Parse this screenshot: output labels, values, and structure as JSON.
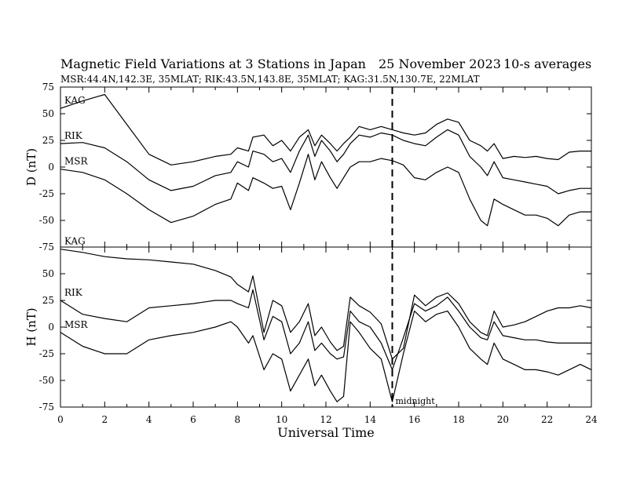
{
  "header": {
    "title": "Magnetic Field Variations at 3 Stations in Japan",
    "date": "25 November 2023",
    "averaging": "10-s averages",
    "stations": "MSR:44.4N,142.3E, 35MLAT;  RIK:43.5N,143.8E, 35MLAT;  KAG:31.5N,130.7E, 22MLAT"
  },
  "chart_data": [
    {
      "type": "line",
      "panel": "top",
      "ylabel": "D (nT)",
      "xlabel": "",
      "xlim": [
        0,
        24
      ],
      "ylim": [
        -75,
        75
      ],
      "yticks": [
        "75",
        "50",
        "25",
        "0",
        "-25",
        "-50",
        "-75"
      ],
      "grid": false,
      "series_labels": [
        "KAG",
        "RIK",
        "MSR"
      ],
      "x": [
        0,
        1,
        2,
        3,
        4,
        5,
        6,
        7,
        7.7,
        8,
        8.5,
        8.7,
        9.2,
        9.6,
        10,
        10.4,
        10.8,
        11.2,
        11.5,
        11.8,
        12.2,
        12.5,
        12.8,
        13.1,
        13.5,
        14,
        14.5,
        15,
        15.5,
        16,
        16.5,
        17,
        17.5,
        18,
        18.5,
        19,
        19.3,
        19.6,
        20,
        20.5,
        21,
        21.5,
        22,
        22.5,
        23,
        23.5,
        24
      ],
      "series": [
        {
          "name": "KAG",
          "values": [
            55,
            62,
            68,
            40,
            12,
            2,
            5,
            10,
            12,
            18,
            15,
            28,
            30,
            20,
            25,
            15,
            28,
            35,
            20,
            30,
            22,
            15,
            22,
            28,
            38,
            35,
            38,
            35,
            32,
            30,
            32,
            40,
            45,
            42,
            25,
            20,
            15,
            22,
            8,
            10,
            9,
            10,
            8,
            7,
            14,
            15,
            15
          ]
        },
        {
          "name": "RIK",
          "values": [
            22,
            23,
            18,
            5,
            -12,
            -22,
            -18,
            -8,
            -5,
            5,
            0,
            15,
            12,
            5,
            8,
            -5,
            15,
            30,
            10,
            25,
            15,
            5,
            12,
            22,
            30,
            28,
            32,
            30,
            25,
            22,
            20,
            28,
            35,
            30,
            10,
            0,
            -8,
            5,
            -10,
            -12,
            -14,
            -16,
            -18,
            -25,
            -22,
            -20,
            -20
          ]
        },
        {
          "name": "MSR",
          "values": [
            -2,
            -5,
            -12,
            -25,
            -40,
            -52,
            -46,
            -35,
            -30,
            -15,
            -22,
            -10,
            -15,
            -20,
            -18,
            -40,
            -15,
            12,
            -12,
            5,
            -10,
            -20,
            -10,
            0,
            5,
            5,
            8,
            6,
            2,
            -10,
            -12,
            -5,
            0,
            -5,
            -30,
            -50,
            -55,
            -30,
            -35,
            -40,
            -45,
            -45,
            -48,
            -55,
            -45,
            -42,
            -42
          ]
        }
      ]
    },
    {
      "type": "line",
      "panel": "bottom",
      "ylabel": "H (nT)",
      "xlabel": "Universal Time",
      "xlim": [
        0,
        24
      ],
      "ylim": [
        -75,
        75
      ],
      "xticks": [
        "0",
        "2",
        "4",
        "6",
        "8",
        "10",
        "12",
        "14",
        "16",
        "18",
        "20",
        "22",
        "24"
      ],
      "yticks": [
        "75",
        "50",
        "25",
        "0",
        "-25",
        "-50",
        "-75"
      ],
      "grid": false,
      "series_labels": [
        "KAG",
        "RIK",
        "MSR"
      ],
      "annotation": "midnight",
      "vline_x": 15,
      "x": [
        0,
        1,
        2,
        3,
        4,
        5,
        6,
        7,
        7.7,
        8,
        8.5,
        8.7,
        9.2,
        9.6,
        10,
        10.4,
        10.8,
        11.2,
        11.5,
        11.8,
        12.2,
        12.5,
        12.8,
        13.1,
        13.5,
        14,
        14.5,
        15,
        15.5,
        16,
        16.5,
        17,
        17.5,
        18,
        18.5,
        19,
        19.3,
        19.6,
        20,
        20.5,
        21,
        21.5,
        22,
        22.5,
        23,
        23.5,
        24
      ],
      "series": [
        {
          "name": "KAG",
          "values": [
            73,
            70,
            66,
            64,
            63,
            61,
            59,
            53,
            47,
            40,
            33,
            48,
            -5,
            25,
            20,
            -5,
            5,
            22,
            -8,
            0,
            -14,
            -22,
            -18,
            28,
            20,
            14,
            3,
            -30,
            -20,
            30,
            20,
            28,
            32,
            22,
            5,
            -5,
            -8,
            15,
            0,
            2,
            5,
            10,
            15,
            18,
            18,
            20,
            18
          ]
        },
        {
          "name": "RIK",
          "values": [
            25,
            12,
            8,
            5,
            18,
            20,
            22,
            25,
            25,
            22,
            18,
            35,
            -12,
            10,
            5,
            -25,
            -15,
            5,
            -22,
            -15,
            -25,
            -30,
            -28,
            15,
            5,
            0,
            -15,
            -40,
            -10,
            22,
            15,
            20,
            28,
            15,
            0,
            -10,
            -12,
            5,
            -8,
            -10,
            -12,
            -12,
            -14,
            -15,
            -15,
            -15,
            -15
          ]
        },
        {
          "name": "MSR",
          "values": [
            -5,
            -18,
            -25,
            -25,
            -12,
            -8,
            -5,
            0,
            5,
            0,
            -15,
            -8,
            -40,
            -25,
            -30,
            -60,
            -45,
            -30,
            -55,
            -45,
            -60,
            -70,
            -65,
            5,
            -5,
            -20,
            -30,
            -70,
            -25,
            15,
            5,
            12,
            15,
            0,
            -20,
            -30,
            -35,
            -15,
            -30,
            -35,
            -40,
            -40,
            -42,
            -45,
            -40,
            -35,
            -40
          ]
        }
      ]
    }
  ]
}
